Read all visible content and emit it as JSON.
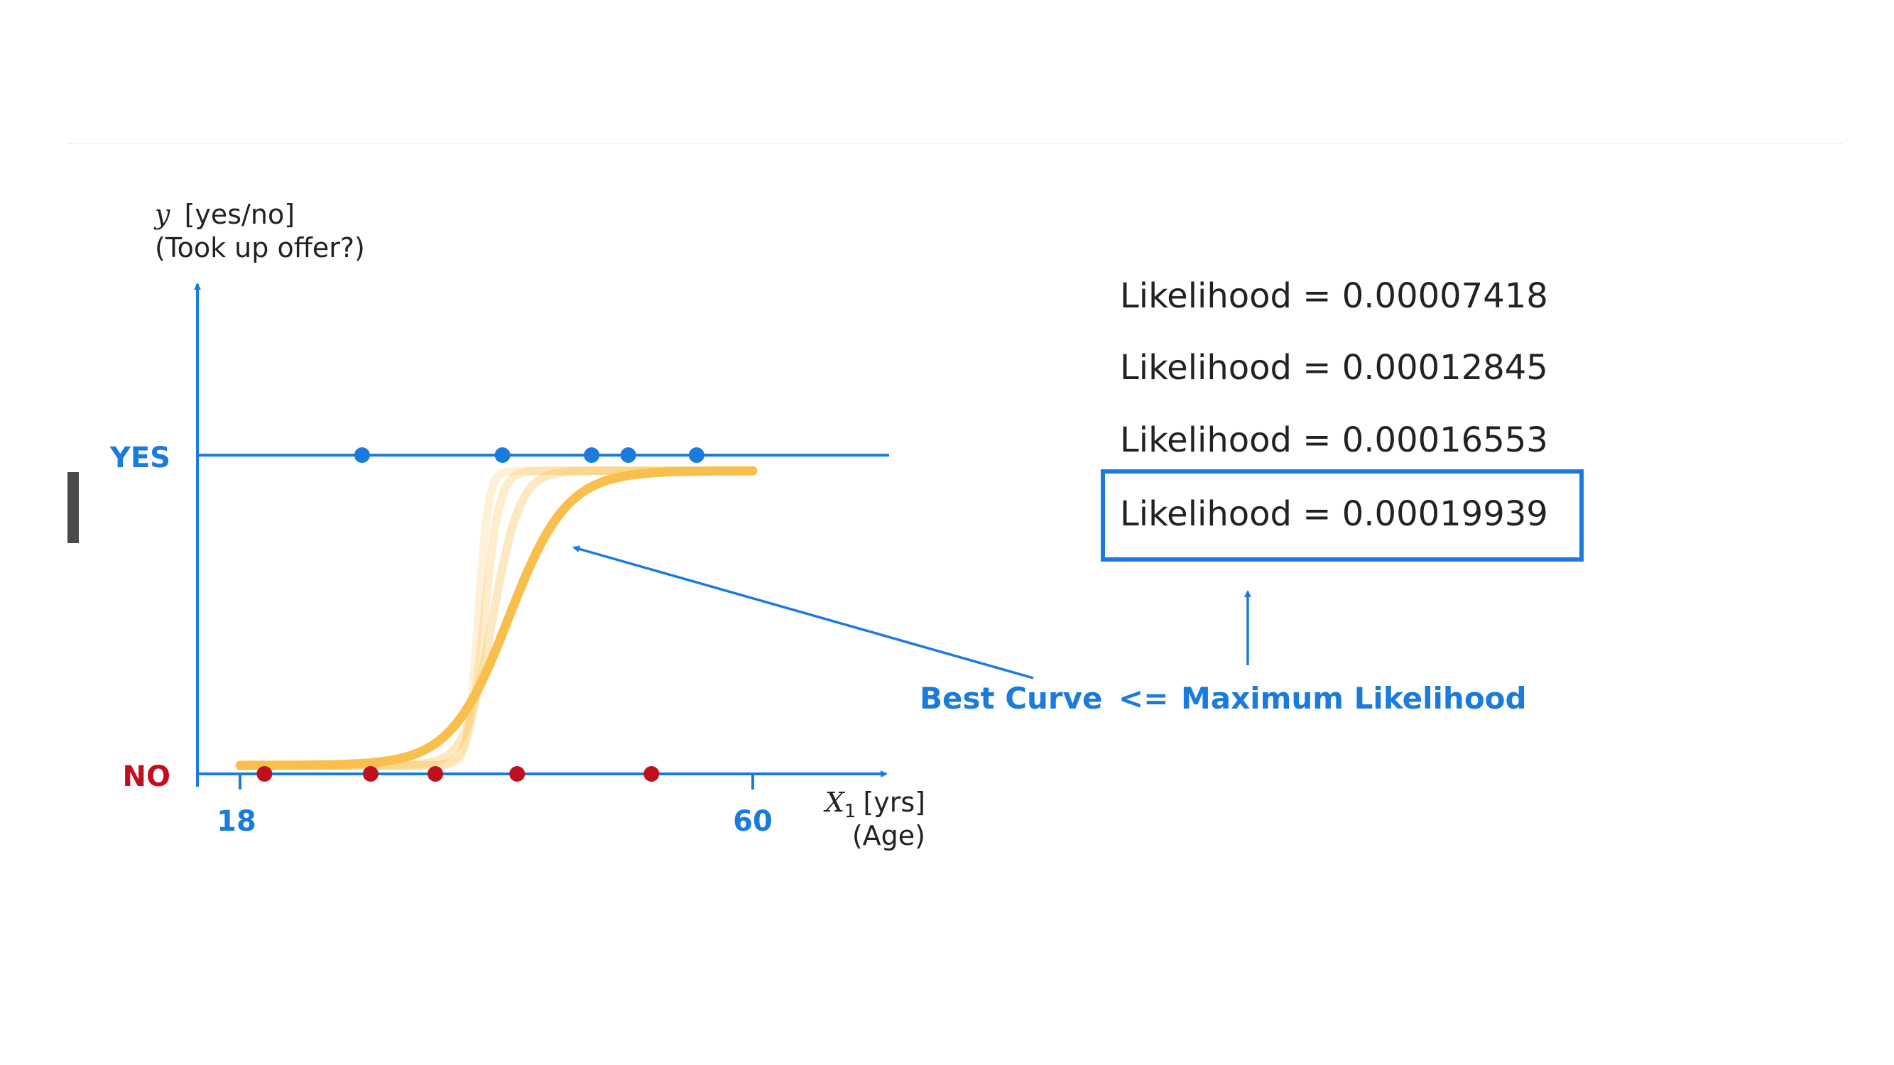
{
  "chart_data": {
    "type": "scatter",
    "yaxis": {
      "label": "[yes/no]",
      "label_var": "y",
      "sublabel": "(Took up offer?)",
      "ticks": [
        "YES",
        "NO"
      ]
    },
    "xaxis": {
      "label_var": "X",
      "label_sub": "1",
      "label": "[yrs]",
      "sublabel": "(Age)",
      "ticks": [
        18,
        60
      ]
    },
    "series": [
      {
        "class": "yes",
        "y": 1,
        "x": [
          28.0,
          39.5,
          46.8,
          49.8,
          55.4
        ],
        "color": "#1a7bdc"
      },
      {
        "class": "no",
        "y": 0,
        "x": [
          20.0,
          28.7,
          34.0,
          40.7,
          51.7
        ],
        "color": "#c0101f"
      }
    ],
    "curves": [
      {
        "role": "candidate",
        "center": 37.5,
        "steepness": 2.4,
        "opacity": 0.22
      },
      {
        "role": "candidate",
        "center": 38.0,
        "steepness": 1.6,
        "opacity": 0.28
      },
      {
        "role": "candidate",
        "center": 38.7,
        "steepness": 0.9,
        "opacity": 0.35
      },
      {
        "role": "best",
        "center": 40.0,
        "steepness": 0.42,
        "opacity": 1.0
      }
    ],
    "curve_color": "#f9bf4c",
    "curve_range": [
      18,
      60
    ],
    "likelihoods": [
      "Likelihood = 0.00007418",
      "Likelihood = 0.00012845",
      "Likelihood = 0.00016553",
      "Likelihood = 0.00019939"
    ],
    "highlighted_likelihood_index": 3,
    "annotation": {
      "left": "Best Curve",
      "operator": "<=",
      "right": "Maximum Likelihood"
    },
    "colors": {
      "axis": "#1a7bdc",
      "yes": "#1a7bdc",
      "no": "#c0101f",
      "text": "#222222",
      "accent": "#1a7bdc"
    }
  }
}
